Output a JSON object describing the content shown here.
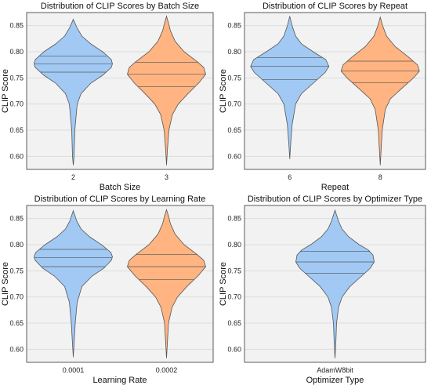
{
  "chart_data": [
    {
      "type": "violin",
      "title": "Distribution of CLIP Scores by Batch Size",
      "xlabel": "Batch Size",
      "ylabel": "CLIP Score",
      "ylim": [
        0.575,
        0.875
      ],
      "yticks": [
        0.6,
        0.65,
        0.7,
        0.75,
        0.8,
        0.85
      ],
      "ytick_labels": [
        "0.60",
        "0.65",
        "0.70",
        "0.75",
        "0.80",
        "0.85"
      ],
      "grid": true,
      "categories": [
        "2",
        "3"
      ],
      "colors": [
        "#a1c9f4",
        "#ffb482"
      ],
      "violins": [
        {
          "min": 0.583,
          "max": 0.862,
          "q1": 0.761,
          "median": 0.777,
          "q3": 0.792,
          "profile": [
            [
              0.583,
              0.0
            ],
            [
              0.6,
              0.02
            ],
            [
              0.65,
              0.04
            ],
            [
              0.7,
              0.1
            ],
            [
              0.72,
              0.2
            ],
            [
              0.74,
              0.45
            ],
            [
              0.755,
              0.75
            ],
            [
              0.77,
              0.97
            ],
            [
              0.777,
              1.0
            ],
            [
              0.785,
              0.97
            ],
            [
              0.8,
              0.75
            ],
            [
              0.815,
              0.45
            ],
            [
              0.83,
              0.22
            ],
            [
              0.845,
              0.1
            ],
            [
              0.855,
              0.04
            ],
            [
              0.862,
              0.0
            ]
          ]
        },
        {
          "min": 0.583,
          "max": 0.868,
          "q1": 0.733,
          "median": 0.757,
          "q3": 0.78,
          "profile": [
            [
              0.583,
              0.0
            ],
            [
              0.61,
              0.02
            ],
            [
              0.65,
              0.06
            ],
            [
              0.68,
              0.15
            ],
            [
              0.7,
              0.3
            ],
            [
              0.72,
              0.55
            ],
            [
              0.74,
              0.82
            ],
            [
              0.757,
              1.0
            ],
            [
              0.77,
              0.95
            ],
            [
              0.78,
              0.8
            ],
            [
              0.8,
              0.45
            ],
            [
              0.82,
              0.22
            ],
            [
              0.84,
              0.1
            ],
            [
              0.855,
              0.05
            ],
            [
              0.868,
              0.0
            ]
          ]
        }
      ]
    },
    {
      "type": "violin",
      "title": "Distribution of CLIP Scores by Repeat",
      "xlabel": "Repeat",
      "ylabel": "CLIP Score",
      "ylim": [
        0.575,
        0.875
      ],
      "yticks": [
        0.6,
        0.65,
        0.7,
        0.75,
        0.8,
        0.85
      ],
      "ytick_labels": [
        "0.60",
        "0.65",
        "0.70",
        "0.75",
        "0.80",
        "0.85"
      ],
      "grid": true,
      "categories": [
        "6",
        "8"
      ],
      "colors": [
        "#a1c9f4",
        "#ffb482"
      ],
      "violins": [
        {
          "min": 0.595,
          "max": 0.868,
          "q1": 0.747,
          "median": 0.772,
          "q3": 0.789,
          "profile": [
            [
              0.595,
              0.0
            ],
            [
              0.62,
              0.02
            ],
            [
              0.66,
              0.06
            ],
            [
              0.7,
              0.15
            ],
            [
              0.72,
              0.3
            ],
            [
              0.74,
              0.6
            ],
            [
              0.76,
              0.9
            ],
            [
              0.772,
              1.0
            ],
            [
              0.785,
              0.92
            ],
            [
              0.8,
              0.6
            ],
            [
              0.815,
              0.3
            ],
            [
              0.83,
              0.15
            ],
            [
              0.85,
              0.06
            ],
            [
              0.868,
              0.0
            ]
          ]
        },
        {
          "min": 0.583,
          "max": 0.866,
          "q1": 0.741,
          "median": 0.763,
          "q3": 0.782,
          "profile": [
            [
              0.583,
              0.0
            ],
            [
              0.61,
              0.02
            ],
            [
              0.65,
              0.05
            ],
            [
              0.69,
              0.13
            ],
            [
              0.71,
              0.26
            ],
            [
              0.73,
              0.55
            ],
            [
              0.75,
              0.85
            ],
            [
              0.763,
              1.0
            ],
            [
              0.775,
              0.95
            ],
            [
              0.79,
              0.72
            ],
            [
              0.81,
              0.38
            ],
            [
              0.83,
              0.16
            ],
            [
              0.85,
              0.06
            ],
            [
              0.866,
              0.0
            ]
          ]
        }
      ]
    },
    {
      "type": "violin",
      "title": "Distribution of CLIP Scores by Learning Rate",
      "xlabel": "Learning Rate",
      "ylabel": "CLIP Score",
      "ylim": [
        0.575,
        0.875
      ],
      "yticks": [
        0.6,
        0.65,
        0.7,
        0.75,
        0.8,
        0.85
      ],
      "ytick_labels": [
        "0.60",
        "0.65",
        "0.70",
        "0.75",
        "0.80",
        "0.85"
      ],
      "grid": true,
      "categories": [
        "0.0001",
        "0.0002"
      ],
      "colors": [
        "#a1c9f4",
        "#ffb482"
      ],
      "violins": [
        {
          "min": 0.585,
          "max": 0.865,
          "q1": 0.758,
          "median": 0.775,
          "q3": 0.791,
          "profile": [
            [
              0.585,
              0.0
            ],
            [
              0.61,
              0.02
            ],
            [
              0.65,
              0.05
            ],
            [
              0.69,
              0.1
            ],
            [
              0.72,
              0.22
            ],
            [
              0.74,
              0.48
            ],
            [
              0.755,
              0.78
            ],
            [
              0.77,
              0.97
            ],
            [
              0.777,
              1.0
            ],
            [
              0.785,
              0.96
            ],
            [
              0.8,
              0.72
            ],
            [
              0.815,
              0.42
            ],
            [
              0.83,
              0.2
            ],
            [
              0.845,
              0.09
            ],
            [
              0.865,
              0.0
            ]
          ]
        },
        {
          "min": 0.583,
          "max": 0.867,
          "q1": 0.733,
          "median": 0.758,
          "q3": 0.781,
          "profile": [
            [
              0.583,
              0.0
            ],
            [
              0.61,
              0.02
            ],
            [
              0.65,
              0.05
            ],
            [
              0.68,
              0.14
            ],
            [
              0.7,
              0.28
            ],
            [
              0.72,
              0.52
            ],
            [
              0.74,
              0.8
            ],
            [
              0.758,
              1.0
            ],
            [
              0.77,
              0.95
            ],
            [
              0.78,
              0.8
            ],
            [
              0.8,
              0.45
            ],
            [
              0.82,
              0.22
            ],
            [
              0.84,
              0.1
            ],
            [
              0.855,
              0.05
            ],
            [
              0.867,
              0.0
            ]
          ]
        }
      ]
    },
    {
      "type": "violin",
      "title": "Distribution of CLIP Scores by Optimizer Type",
      "xlabel": "Optimizer Type",
      "ylabel": "CLIP Score",
      "ylim": [
        0.575,
        0.875
      ],
      "yticks": [
        0.6,
        0.65,
        0.7,
        0.75,
        0.8,
        0.85
      ],
      "ytick_labels": [
        "0.60",
        "0.65",
        "0.70",
        "0.75",
        "0.80",
        "0.85"
      ],
      "grid": true,
      "categories": [
        "AdamW8bit"
      ],
      "colors": [
        "#a1c9f4"
      ],
      "violins": [
        {
          "min": 0.583,
          "max": 0.866,
          "q1": 0.745,
          "median": 0.767,
          "q3": 0.787,
          "profile": [
            [
              0.583,
              0.0
            ],
            [
              0.61,
              0.02
            ],
            [
              0.65,
              0.04
            ],
            [
              0.68,
              0.09
            ],
            [
              0.7,
              0.18
            ],
            [
              0.72,
              0.38
            ],
            [
              0.74,
              0.68
            ],
            [
              0.755,
              0.9
            ],
            [
              0.767,
              1.0
            ],
            [
              0.78,
              0.97
            ],
            [
              0.79,
              0.85
            ],
            [
              0.8,
              0.62
            ],
            [
              0.815,
              0.35
            ],
            [
              0.83,
              0.18
            ],
            [
              0.845,
              0.09
            ],
            [
              0.866,
              0.0
            ]
          ]
        }
      ]
    }
  ]
}
